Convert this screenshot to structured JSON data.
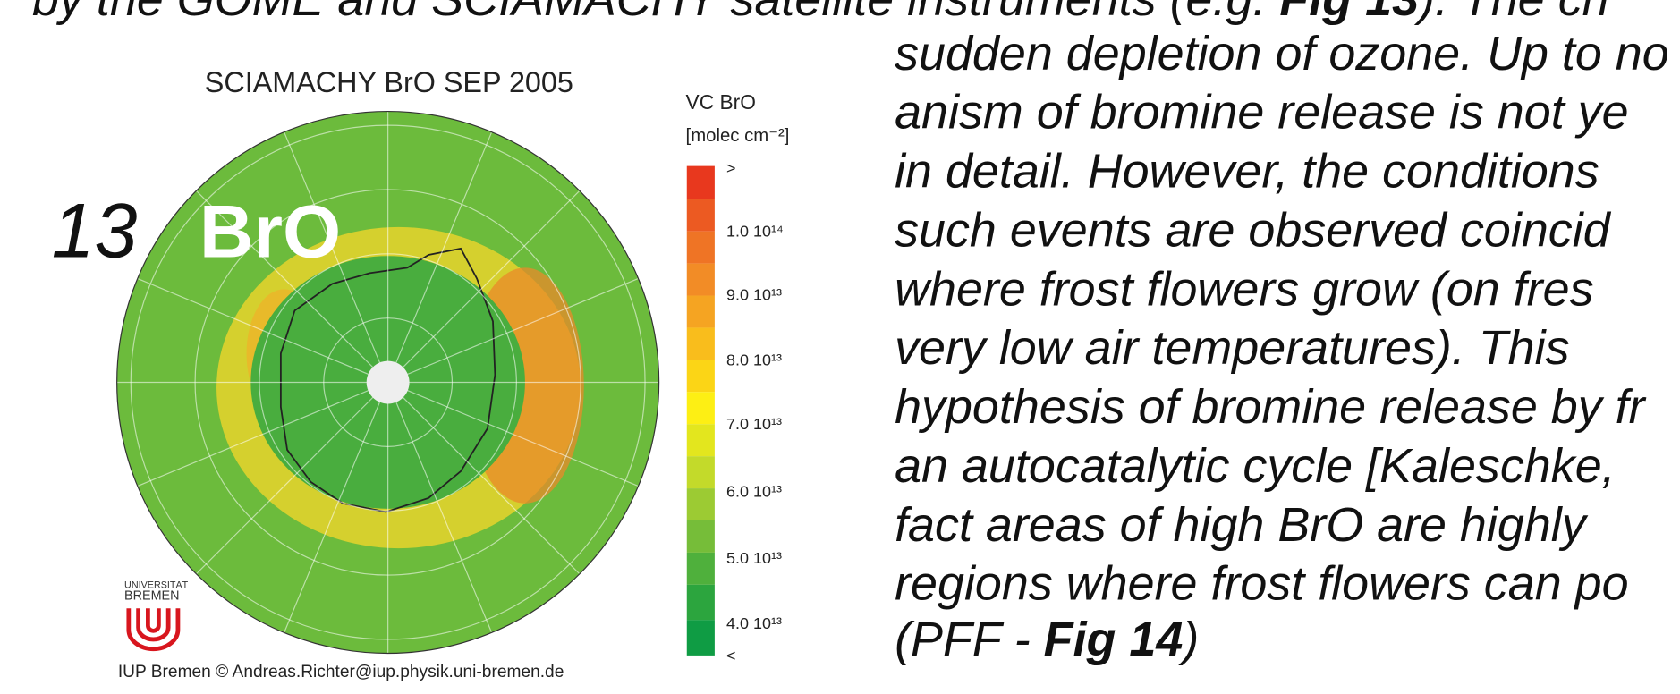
{
  "top_line": {
    "parts": [
      "by the GOME and SCIAMACHY satellite instruments (e.g. ",
      "Fig 13",
      "). The ch"
    ]
  },
  "figure": {
    "title": "SCIAMACHY BrO SEP 2005",
    "number": "13",
    "label": "BrO",
    "colorbar": {
      "title": "VC BrO",
      "unit": "[molec cm⁻²]",
      "labels": [
        ">",
        "1.0 10¹⁴",
        "9.0 10¹³",
        "8.0 10¹³",
        "7.0 10¹³",
        "6.0 10¹³",
        "5.0 10¹³",
        "4.0 10¹³",
        "<"
      ]
    },
    "logo": [
      "UNIVERSITÄT",
      "BREMEN"
    ],
    "credit": "IUP Bremen © Andreas.Richter@iup.physik.uni-bremen.de"
  },
  "body": {
    "lines": [
      "sudden depletion of ozone. Up to no",
      "anism of bromine release is not ye",
      "in detail. However, the conditions",
      "such events are observed coincid",
      "where frost flowers grow (on fres",
      "very low air temperatures). This",
      "hypothesis of bromine release by fr",
      "an autocatalytic cycle [Kaleschke,",
      "fact areas of high BrO are highly",
      "regions where frost flowers can po"
    ],
    "last_line": [
      "(PFF - ",
      "Fig 14",
      ")"
    ]
  }
}
